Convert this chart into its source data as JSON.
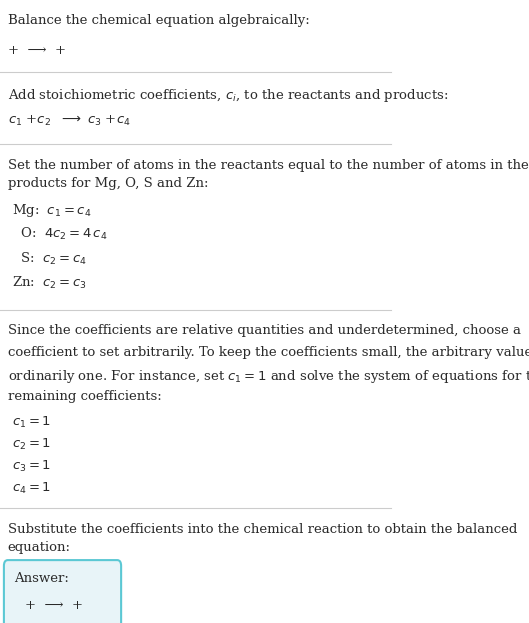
{
  "title": "Balance the chemical equation algebraically:",
  "line1": "+  ⟶  +",
  "section2_header": "Add stoichiometric coefficients, $c_i$, to the reactants and products:",
  "section3_header": "Set the number of atoms in the reactants equal to the number of atoms in the\nproducts for Mg, O, S and Zn:",
  "section4_header_parts": [
    "Since the coefficients are relative quantities and underdetermined, choose a",
    "coefficient to set arbitrarily. To keep the coefficients small, the arbitrary value is",
    "ordinarily one. For instance, set $c_1 = 1$ and solve the system of equations for the",
    "remaining coefficients:"
  ],
  "section5_header": "Substitute the coefficients into the chemical reaction to obtain the balanced\nequation:",
  "answer_label": "Answer:",
  "answer_eq": "+  ⟶  +",
  "bg_color": "#ffffff",
  "text_color": "#2a2a2a",
  "separator_color": "#cccccc",
  "answer_box_bg": "#e8f4f8",
  "answer_box_border": "#5bc8d4"
}
